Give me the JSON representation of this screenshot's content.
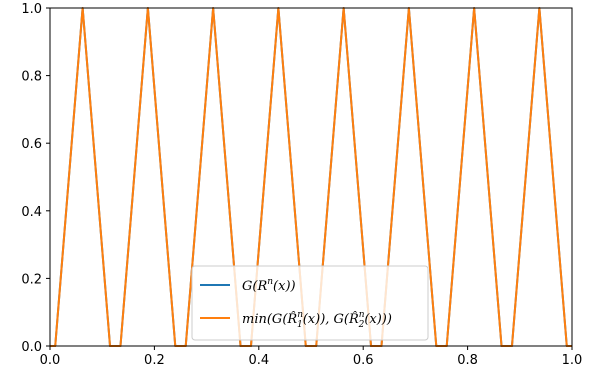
{
  "chart_data": {
    "type": "line",
    "title": "",
    "xlabel": "",
    "ylabel": "",
    "xlim": [
      0.0,
      1.0
    ],
    "ylim": [
      0.0,
      1.0
    ],
    "grid": false,
    "legend_position": "lower-center",
    "x_ticks": [
      0.0,
      0.2,
      0.4,
      0.6,
      0.8,
      1.0
    ],
    "x_tick_labels": [
      "0.0",
      "0.2",
      "0.4",
      "0.6",
      "0.8",
      "1.0"
    ],
    "y_ticks": [
      0.0,
      0.2,
      0.4,
      0.6,
      0.8,
      1.0
    ],
    "y_tick_labels": [
      "0.0",
      "0.2",
      "0.4",
      "0.6",
      "0.8",
      "1.0"
    ],
    "series": [
      {
        "name": "G(R^n(x))",
        "color": "#1f77b4",
        "x": [
          0.0,
          0.01,
          0.0625,
          0.115,
          0.135,
          0.1875,
          0.24,
          0.26,
          0.3125,
          0.365,
          0.385,
          0.4375,
          0.49,
          0.51,
          0.5625,
          0.615,
          0.635,
          0.6875,
          0.74,
          0.76,
          0.8125,
          0.865,
          0.885,
          0.9375,
          0.99,
          1.0
        ],
        "y": [
          0.0,
          0.0,
          1.0,
          0.0,
          0.0,
          1.0,
          0.0,
          0.0,
          1.0,
          0.0,
          0.0,
          1.0,
          0.0,
          0.0,
          1.0,
          0.0,
          0.0,
          1.0,
          0.0,
          0.0,
          1.0,
          0.0,
          0.0,
          1.0,
          0.0,
          0.0
        ]
      },
      {
        "name": "min(G(R̂_1^n(x)), G(R̂_2^n(x)))",
        "color": "#ff7f0e",
        "x": [
          0.0,
          0.01,
          0.0625,
          0.115,
          0.135,
          0.1875,
          0.24,
          0.26,
          0.3125,
          0.365,
          0.385,
          0.4375,
          0.49,
          0.51,
          0.5625,
          0.615,
          0.635,
          0.6875,
          0.74,
          0.76,
          0.8125,
          0.865,
          0.885,
          0.9375,
          0.99,
          1.0
        ],
        "y": [
          0.0,
          0.0,
          1.0,
          0.0,
          0.0,
          1.0,
          0.0,
          0.0,
          1.0,
          0.0,
          0.0,
          1.0,
          0.0,
          0.0,
          1.0,
          0.0,
          0.0,
          1.0,
          0.0,
          0.0,
          1.0,
          0.0,
          0.0,
          1.0,
          0.0,
          0.0
        ]
      }
    ]
  }
}
